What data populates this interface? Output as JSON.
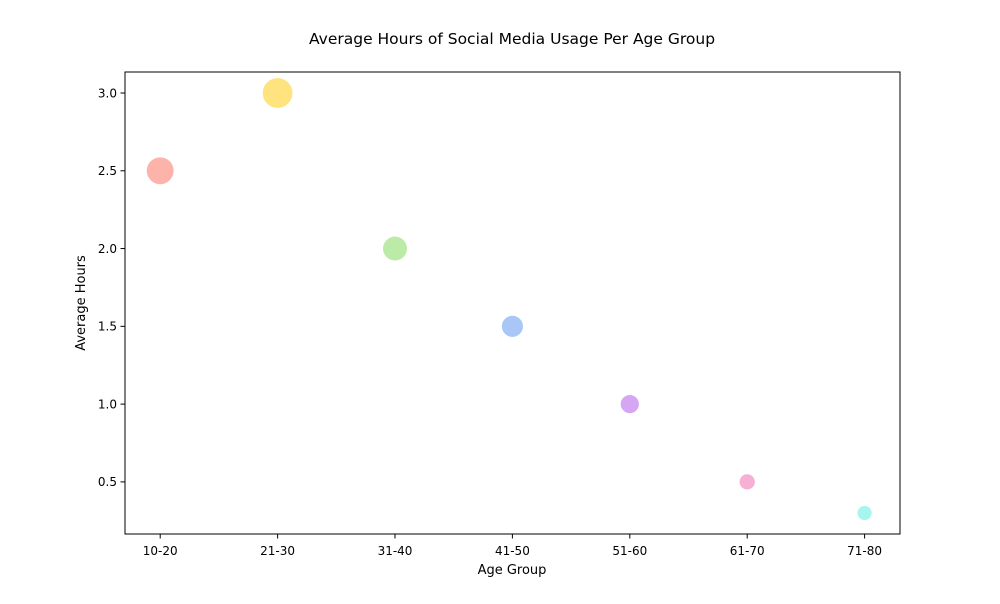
{
  "chart_data": {
    "type": "scatter",
    "title": "Average Hours of Social Media Usage Per Age Group",
    "xlabel": "Age Group",
    "ylabel": "Average Hours",
    "categories": [
      "10-20",
      "21-30",
      "31-40",
      "41-50",
      "51-60",
      "61-70",
      "71-80"
    ],
    "values": [
      2.5,
      3.0,
      2.0,
      1.5,
      1.0,
      0.5,
      0.3
    ],
    "colors": [
      "#FA8072",
      "#FFD02A",
      "#90DE6D",
      "#6EA0F0",
      "#B96BED",
      "#F07BB6",
      "#6CF0E2"
    ],
    "marker_alpha": 0.6,
    "ylim": [
      0.165,
      3.135
    ],
    "yticks": [
      "0.5",
      "1.0",
      "1.5",
      "2.0",
      "2.5",
      "3.0"
    ],
    "grid": false,
    "legend": "none"
  }
}
